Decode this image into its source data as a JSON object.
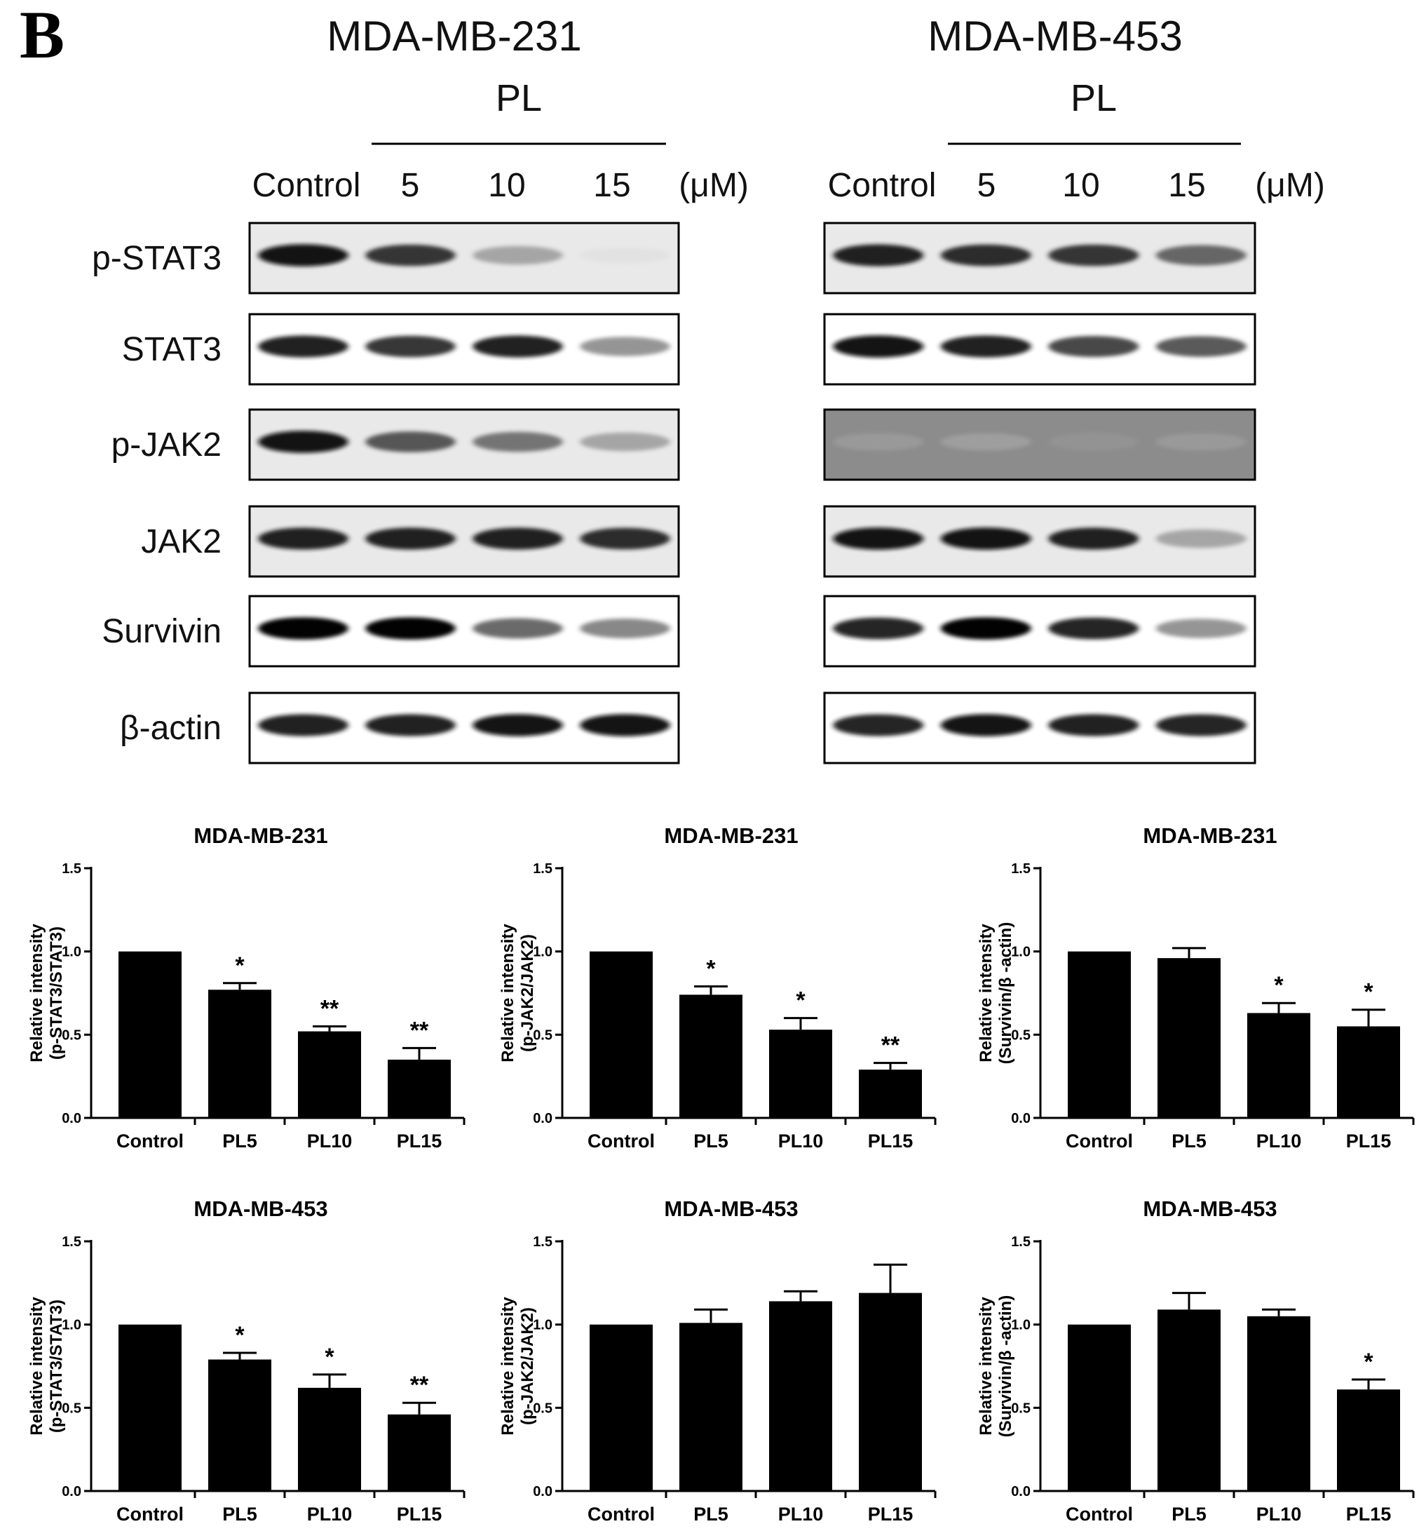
{
  "panel_label": "B",
  "blots": [
    {
      "cell_line": "MDA-MB-231",
      "treatment": "PL",
      "lanes": [
        "Control",
        "5",
        "10",
        "15"
      ],
      "unit": "(μM)",
      "proteins": [
        "p-STAT3",
        "STAT3",
        "p-JAK2",
        "JAK2",
        "Survivin",
        "β-actin"
      ],
      "band_intensity": [
        [
          0.95,
          0.85,
          0.45,
          0.08
        ],
        [
          0.92,
          0.85,
          0.92,
          0.55
        ],
        [
          0.95,
          0.75,
          0.65,
          0.45
        ],
        [
          0.92,
          0.92,
          0.92,
          0.88
        ],
        [
          0.98,
          0.98,
          0.7,
          0.6
        ],
        [
          0.92,
          0.92,
          0.95,
          0.95
        ]
      ]
    },
    {
      "cell_line": "MDA-MB-453",
      "treatment": "PL",
      "lanes": [
        "Control",
        "5",
        "10",
        "15"
      ],
      "unit": "(μM)",
      "proteins": [
        "p-STAT3",
        "STAT3",
        "p-JAK2",
        "JAK2",
        "Survivin",
        "β-actin"
      ],
      "band_intensity": [
        [
          0.92,
          0.88,
          0.85,
          0.7
        ],
        [
          0.95,
          0.92,
          0.8,
          0.75
        ],
        [
          0.3,
          0.25,
          0.35,
          0.3
        ],
        [
          0.95,
          0.95,
          0.92,
          0.45
        ],
        [
          0.9,
          0.98,
          0.9,
          0.55
        ],
        [
          0.9,
          0.95,
          0.92,
          0.9
        ]
      ]
    }
  ],
  "chart_data": [
    {
      "type": "bar",
      "title": "MDA-MB-231",
      "ylabel": [
        "Relative intensity",
        "(p-STAT3/STAT3)"
      ],
      "categories": [
        "Control",
        "PL5",
        "PL10",
        "PL15"
      ],
      "values": [
        1.0,
        0.77,
        0.52,
        0.35
      ],
      "errors": [
        0.0,
        0.04,
        0.03,
        0.07
      ],
      "significance": [
        "",
        "*",
        "**",
        "**"
      ],
      "ylim": [
        0,
        1.5
      ],
      "yticks": [
        "0.0",
        "0.5",
        "1.0",
        "1.5"
      ]
    },
    {
      "type": "bar",
      "title": "MDA-MB-231",
      "ylabel": [
        "Relative intensity",
        "(p-JAK2/JAK2)"
      ],
      "categories": [
        "Control",
        "PL5",
        "PL10",
        "PL15"
      ],
      "values": [
        1.0,
        0.74,
        0.53,
        0.29
      ],
      "errors": [
        0.0,
        0.05,
        0.07,
        0.04
      ],
      "significance": [
        "",
        "*",
        "*",
        "**"
      ],
      "ylim": [
        0,
        1.5
      ],
      "yticks": [
        "0.0",
        "0.5",
        "1.0",
        "1.5"
      ]
    },
    {
      "type": "bar",
      "title": "MDA-MB-231",
      "ylabel": [
        "Relative intensity",
        "(Survivin/β -actin)"
      ],
      "categories": [
        "Control",
        "PL5",
        "PL10",
        "PL15"
      ],
      "values": [
        1.0,
        0.96,
        0.63,
        0.55
      ],
      "errors": [
        0.0,
        0.06,
        0.06,
        0.1
      ],
      "significance": [
        "",
        "",
        "*",
        "*"
      ],
      "ylim": [
        0,
        1.5
      ],
      "yticks": [
        "0.0",
        "0.5",
        "1.0",
        "1.5"
      ]
    },
    {
      "type": "bar",
      "title": "MDA-MB-453",
      "ylabel": [
        "Relative intensity",
        "(p-STAT3/STAT3)"
      ],
      "categories": [
        "Control",
        "PL5",
        "PL10",
        "PL15"
      ],
      "values": [
        1.0,
        0.79,
        0.62,
        0.46
      ],
      "errors": [
        0.0,
        0.04,
        0.08,
        0.07
      ],
      "significance": [
        "",
        "*",
        "*",
        "**"
      ],
      "ylim": [
        0,
        1.5
      ],
      "yticks": [
        "0.0",
        "0.5",
        "1.0",
        "1.5"
      ]
    },
    {
      "type": "bar",
      "title": "MDA-MB-453",
      "ylabel": [
        "Relative intensity",
        "(p-JAK2/JAK2)"
      ],
      "categories": [
        "Control",
        "PL5",
        "PL10",
        "PL15"
      ],
      "values": [
        1.0,
        1.01,
        1.14,
        1.19
      ],
      "errors": [
        0.0,
        0.08,
        0.06,
        0.17
      ],
      "significance": [
        "",
        "",
        "",
        ""
      ],
      "ylim": [
        0,
        1.5
      ],
      "yticks": [
        "0.0",
        "0.5",
        "1.0",
        "1.5"
      ]
    },
    {
      "type": "bar",
      "title": "MDA-MB-453",
      "ylabel": [
        "Relative intensity",
        "(Survivin/β -actin)"
      ],
      "categories": [
        "Control",
        "PL5",
        "PL10",
        "PL15"
      ],
      "values": [
        1.0,
        1.09,
        1.05,
        0.61
      ],
      "errors": [
        0.0,
        0.1,
        0.04,
        0.06
      ],
      "significance": [
        "",
        "",
        "",
        "*"
      ],
      "ylim": [
        0,
        1.5
      ],
      "yticks": [
        "0.0",
        "0.5",
        "1.0",
        "1.5"
      ]
    }
  ]
}
